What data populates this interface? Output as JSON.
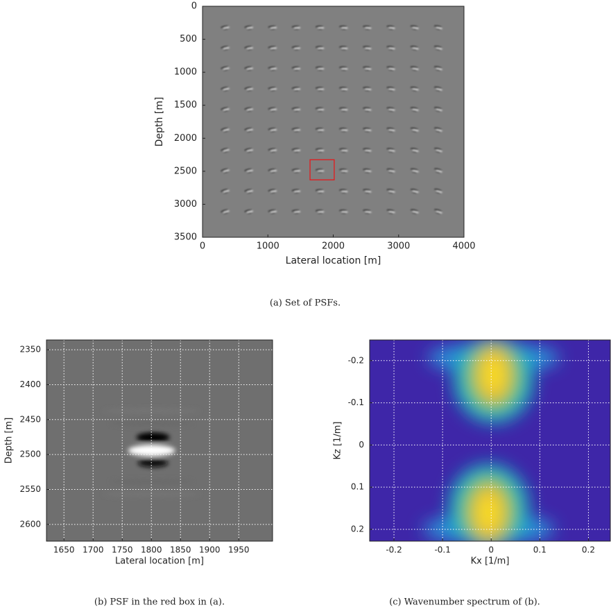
{
  "chart_data": [
    {
      "type": "image",
      "caption": "(a) Set of PSFs.",
      "xlabel": "Lateral location [m]",
      "ylabel": "Depth [m]",
      "xlim": [
        0,
        4000
      ],
      "ylim": [
        0,
        3500
      ],
      "yreverse": true,
      "grid": false,
      "xticks": [
        0,
        1000,
        2000,
        3000,
        4000
      ],
      "yticks": [
        0,
        500,
        1000,
        1500,
        2000,
        2500,
        3000,
        3500
      ],
      "box": {
        "x": [
          1645,
          2015
        ],
        "y": [
          2325,
          2630
        ],
        "color": "#e41a1c"
      }
    },
    {
      "type": "image",
      "caption": "(b) PSF in the red box in (a).",
      "xlabel": "Lateral location [m]",
      "ylabel": "Depth [m]",
      "xlim": [
        1620,
        2008
      ],
      "ylim": [
        2336,
        2624
      ],
      "yreverse": true,
      "grid": true,
      "xticks": [
        1650,
        1700,
        1750,
        1800,
        1850,
        1900,
        1950
      ],
      "yticks": [
        2350,
        2400,
        2450,
        2500,
        2550,
        2600
      ]
    },
    {
      "type": "spectrum",
      "caption": "(c) Wavenumber spectrum of (b).",
      "xlabel": "Kx [1/m]",
      "ylabel": "Kz [1/m]",
      "xlim": [
        -0.25,
        0.245
      ],
      "ylim": [
        -0.249,
        0.228
      ],
      "yreverse": true,
      "grid": true,
      "xticks": [
        -0.2,
        -0.1,
        0,
        0.1,
        0.2
      ],
      "yticks": [
        -0.2,
        -0.1,
        0,
        0.1,
        0.2
      ]
    }
  ]
}
